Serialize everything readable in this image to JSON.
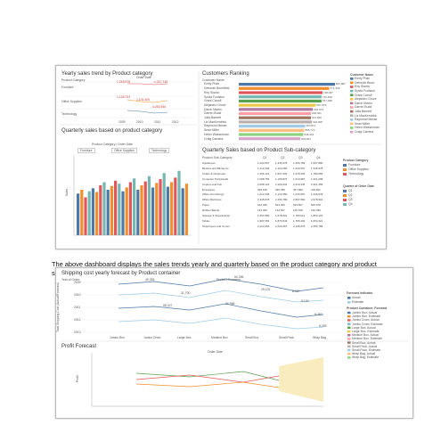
{
  "dashboard1": {
    "yearly": {
      "title": "Yearly sales trend by Product category",
      "col_header_left": "Product Category",
      "col_header_right": "Order Date",
      "rows": [
        "Furniture",
        "Office Supplies",
        "Technology"
      ],
      "years": [
        "2009",
        "2010",
        "2011",
        "2012"
      ],
      "values": [
        "1,218,975",
        "1,217,745",
        "1,126,731",
        "1,131,400",
        "4,251,954"
      ]
    },
    "customers": {
      "title": "Customers Ranking",
      "col_header": "Customer Name",
      "names": [
        "Emily Phan",
        "Deborah Brumfield",
        "Roy Skaria",
        "Sylvia Foulston",
        "Grant Carroll",
        "Alejandro Grove",
        "Darrin Martin",
        "Darren Budd",
        "Julia Barnett",
        "Liz MacKendrick",
        "Raymond Messe",
        "Sean Miller",
        "Helen Wasserman",
        "Craig Carreira"
      ],
      "values": [
        "821,887",
        "771,336",
        "718,007",
        "710,498",
        "707,008",
        "657,876",
        "632,573",
        "618,461",
        "614,930",
        "622,305",
        "563,871",
        "555,771",
        "548,461",
        "526,801"
      ],
      "shares": [
        1.0,
        0.94,
        0.87,
        0.86,
        0.86,
        0.8,
        0.77,
        0.75,
        0.75,
        0.76,
        0.69,
        0.68,
        0.67,
        0.64
      ],
      "legend_title": "Customer Name",
      "legend": [
        "Emily Phan",
        "Deborah Brum.",
        "Roy Skaria",
        "Sylvia Foulston",
        "Grant Carroll",
        "Alejandro Grove",
        "Darrin Martin",
        "Darren Budd",
        "Julia Barnett",
        "Liz MacKendrick",
        "Raymond Messe",
        "Sean Miller",
        "Helen Wasserman",
        "Craig Carreira"
      ]
    },
    "quarterly": {
      "title": "Quarterly sales based on product category",
      "filter_label": "Product Category / Order Date",
      "filters": [
        "Furniture",
        "Office Supplies",
        "Technology"
      ],
      "ylabel": "Sales",
      "bar_heights": [
        0.55,
        0.6,
        0.5,
        0.58,
        0.62,
        0.57,
        0.66,
        0.7,
        0.6,
        0.65,
        0.72,
        0.68,
        0.58,
        0.63,
        0.7,
        0.75,
        0.6,
        0.66,
        0.71,
        0.78,
        0.63,
        0.69,
        0.74,
        0.82,
        0.64,
        0.7,
        0.76,
        0.85,
        0.62,
        0.68
      ]
    },
    "subcat": {
      "title": "Quarterly Sales based on Product Sub-category",
      "col_header": "Product Sub-Category",
      "quarters": [
        "Q1",
        "Q2",
        "Q3",
        "Q4"
      ],
      "rows": [
        [
          "Appliances",
          "1,234,567",
          "1,345,678",
          "1,456,789",
          "1,567,890"
        ],
        [
          "Binders and Binder Ac.",
          "1,212,345",
          "1,123,456",
          "1,234,567",
          "1,345,678"
        ],
        [
          "Chairs & Chairmats",
          "1,456,123",
          "1,567,234",
          "1,678,345",
          "1,789,456"
        ],
        [
          "Computer Peripherals",
          "1,098,765",
          "1,109,876",
          "1,210,987",
          "1,321,098"
        ],
        [
          "Copiers and Fax",
          "2,098,123",
          "2,109,234",
          "2,210,345",
          "2,321,456"
        ],
        [
          "Envelopes",
          "345,678",
          "356,789",
          "367,890",
          "378,901"
        ],
        [
          "Office Furnishings",
          "1,012,345",
          "1,123,456",
          "1,234,567",
          "1,345,678"
        ],
        [
          "Office Machines",
          "2,345,678",
          "2,456,789",
          "2,567,890",
          "2,678,901"
        ],
        [
          "Paper",
          "512,345",
          "523,456",
          "534,567",
          "545,678"
        ],
        [
          "Rubber Bands",
          "123,456",
          "134,567",
          "145,678",
          "156,789"
        ],
        [
          "Storage & Organization",
          "1,567,890",
          "1,678,901",
          "1,789,012",
          "1,890,123"
        ],
        [
          "Tables",
          "1,987,654",
          "1,876,543",
          "1,765,432",
          "1,654,321"
        ],
        [
          "Telephones and Comm.",
          "2,123,456",
          "2,234,567",
          "2,345,678",
          "2,456,789"
        ]
      ],
      "legend_title": "Product Category",
      "legend": [
        "Furniture",
        "Office Supplies",
        "Technology"
      ],
      "legend2_title": "Quarter of Order Date",
      "legend2": [
        "Q1",
        "Q2",
        "Q3",
        "Q4"
      ]
    }
  },
  "caption": "The above dashboard displays the sales trends yearly and quarterly based on the product category and product subcategory along with the chart displaying the most valued customers based on total sales per customer.",
  "dashboard2": {
    "forecast": {
      "title": "Shipping cost yearly forecast by Product container",
      "left_header": "Year of Order",
      "center_header": "Product Container",
      "years": [
        "2009",
        "2010",
        "2011",
        "2012",
        "2013"
      ],
      "ylabel": "Total Shipping Cost (Actual/Forecast)",
      "containers": [
        "Jumbo Box",
        "Jumbo Drum",
        "Large Box",
        "Medium Box",
        "Small Box",
        "Small Pack",
        "Wrap Bag"
      ],
      "point_labels": [
        "49,355",
        "31,700",
        "58,327",
        "50,396",
        "36,988",
        "29,102",
        "8,087",
        "8,100",
        "8,287",
        "8,289"
      ],
      "legend_title": "Forecast indicator",
      "legend": [
        "Actual",
        "Estimate"
      ],
      "legend2_title": "Product Container, Forecast",
      "legend2": [
        "Jumbo Box, Actual",
        "Jumbo Box, Estimate",
        "Jumbo Drum, Actual",
        "Jumbo Drum, Estimate",
        "Large Box, Actual",
        "Large Box, Estimate",
        "Medium Box, Actual",
        "Medium Box, Estimate",
        "Small Box, Actual",
        "Small Pack, Actual",
        "Small Pack, Estimate",
        "Wrap Bag, Actual",
        "Wrap Bag, Estimate"
      ]
    },
    "profit": {
      "title": "Profit Forecast",
      "center_header": "Order Date",
      "ylabel": "Profit"
    }
  }
}
